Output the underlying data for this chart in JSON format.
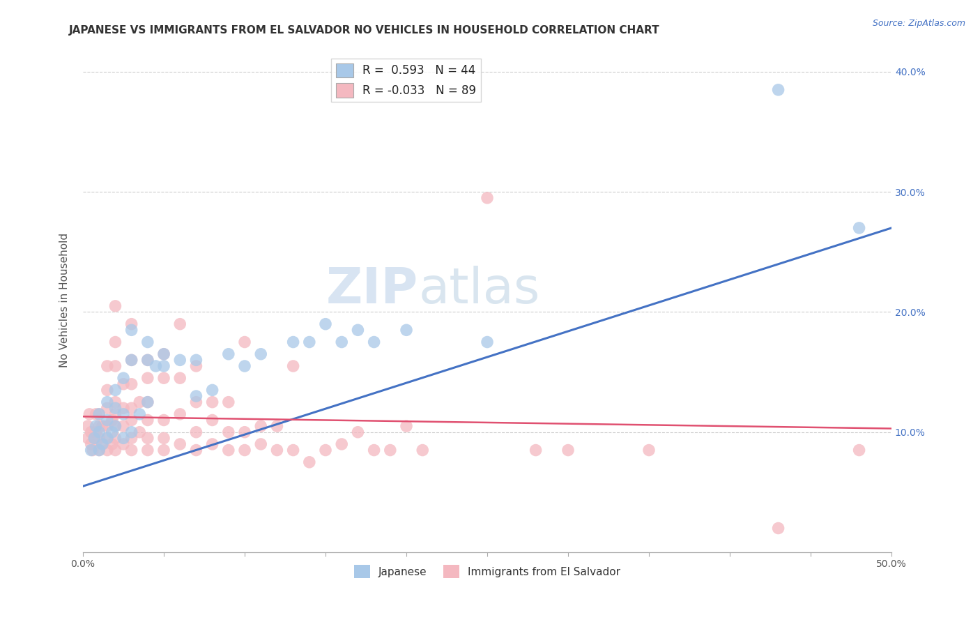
{
  "title": "JAPANESE VS IMMIGRANTS FROM EL SALVADOR NO VEHICLES IN HOUSEHOLD CORRELATION CHART",
  "source": "Source: ZipAtlas.com",
  "ylabel": "No Vehicles in Household",
  "xlabel": "",
  "xlim": [
    0.0,
    0.5
  ],
  "ylim": [
    -0.02,
    0.44
  ],
  "plot_ylim": [
    0.0,
    0.42
  ],
  "xticks": [
    0.0,
    0.05,
    0.1,
    0.15,
    0.2,
    0.25,
    0.3,
    0.35,
    0.4,
    0.45,
    0.5
  ],
  "ytick_positions": [
    0.1,
    0.2,
    0.3,
    0.4
  ],
  "ytick_labels": [
    "10.0%",
    "20.0%",
    "30.0%",
    "40.0%"
  ],
  "xtick_labels": [
    "0.0%",
    "",
    "",
    "",
    "",
    "",
    "",
    "",
    "",
    "",
    "50.0%"
  ],
  "watermark_zip": "ZIP",
  "watermark_atlas": "atlas",
  "blue_color": "#a8c8e8",
  "pink_color": "#f4b8c0",
  "blue_line_color": "#4472c4",
  "pink_line_color": "#e05070",
  "blue_line_x0": 0.0,
  "blue_line_y0": 0.055,
  "blue_line_x1": 0.5,
  "blue_line_y1": 0.27,
  "pink_line_x0": 0.0,
  "pink_line_y0": 0.113,
  "pink_line_x1": 0.5,
  "pink_line_y1": 0.103,
  "blue_scatter": [
    [
      0.005,
      0.085
    ],
    [
      0.007,
      0.095
    ],
    [
      0.008,
      0.105
    ],
    [
      0.01,
      0.085
    ],
    [
      0.01,
      0.1
    ],
    [
      0.01,
      0.115
    ],
    [
      0.012,
      0.09
    ],
    [
      0.015,
      0.095
    ],
    [
      0.015,
      0.11
    ],
    [
      0.015,
      0.125
    ],
    [
      0.018,
      0.1
    ],
    [
      0.02,
      0.105
    ],
    [
      0.02,
      0.12
    ],
    [
      0.02,
      0.135
    ],
    [
      0.025,
      0.095
    ],
    [
      0.025,
      0.115
    ],
    [
      0.025,
      0.145
    ],
    [
      0.03,
      0.1
    ],
    [
      0.03,
      0.16
    ],
    [
      0.03,
      0.185
    ],
    [
      0.035,
      0.115
    ],
    [
      0.04,
      0.125
    ],
    [
      0.04,
      0.16
    ],
    [
      0.04,
      0.175
    ],
    [
      0.045,
      0.155
    ],
    [
      0.05,
      0.155
    ],
    [
      0.05,
      0.165
    ],
    [
      0.06,
      0.16
    ],
    [
      0.07,
      0.13
    ],
    [
      0.07,
      0.16
    ],
    [
      0.08,
      0.135
    ],
    [
      0.09,
      0.165
    ],
    [
      0.1,
      0.155
    ],
    [
      0.11,
      0.165
    ],
    [
      0.13,
      0.175
    ],
    [
      0.14,
      0.175
    ],
    [
      0.15,
      0.19
    ],
    [
      0.16,
      0.175
    ],
    [
      0.17,
      0.185
    ],
    [
      0.18,
      0.175
    ],
    [
      0.2,
      0.185
    ],
    [
      0.25,
      0.175
    ],
    [
      0.43,
      0.385
    ],
    [
      0.48,
      0.27
    ]
  ],
  "pink_scatter": [
    [
      0.003,
      0.105
    ],
    [
      0.003,
      0.095
    ],
    [
      0.004,
      0.115
    ],
    [
      0.005,
      0.09
    ],
    [
      0.005,
      0.1
    ],
    [
      0.006,
      0.085
    ],
    [
      0.007,
      0.095
    ],
    [
      0.008,
      0.1
    ],
    [
      0.008,
      0.115
    ],
    [
      0.01,
      0.085
    ],
    [
      0.01,
      0.095
    ],
    [
      0.01,
      0.105
    ],
    [
      0.01,
      0.115
    ],
    [
      0.012,
      0.09
    ],
    [
      0.012,
      0.105
    ],
    [
      0.015,
      0.085
    ],
    [
      0.015,
      0.095
    ],
    [
      0.015,
      0.105
    ],
    [
      0.015,
      0.12
    ],
    [
      0.015,
      0.135
    ],
    [
      0.015,
      0.155
    ],
    [
      0.018,
      0.09
    ],
    [
      0.018,
      0.11
    ],
    [
      0.02,
      0.085
    ],
    [
      0.02,
      0.095
    ],
    [
      0.02,
      0.105
    ],
    [
      0.02,
      0.115
    ],
    [
      0.02,
      0.125
    ],
    [
      0.02,
      0.155
    ],
    [
      0.02,
      0.175
    ],
    [
      0.02,
      0.205
    ],
    [
      0.025,
      0.09
    ],
    [
      0.025,
      0.105
    ],
    [
      0.025,
      0.12
    ],
    [
      0.025,
      0.14
    ],
    [
      0.03,
      0.085
    ],
    [
      0.03,
      0.095
    ],
    [
      0.03,
      0.11
    ],
    [
      0.03,
      0.12
    ],
    [
      0.03,
      0.14
    ],
    [
      0.03,
      0.16
    ],
    [
      0.03,
      0.19
    ],
    [
      0.035,
      0.1
    ],
    [
      0.035,
      0.125
    ],
    [
      0.04,
      0.085
    ],
    [
      0.04,
      0.095
    ],
    [
      0.04,
      0.11
    ],
    [
      0.04,
      0.125
    ],
    [
      0.04,
      0.145
    ],
    [
      0.04,
      0.16
    ],
    [
      0.05,
      0.085
    ],
    [
      0.05,
      0.095
    ],
    [
      0.05,
      0.11
    ],
    [
      0.05,
      0.145
    ],
    [
      0.05,
      0.165
    ],
    [
      0.06,
      0.09
    ],
    [
      0.06,
      0.115
    ],
    [
      0.06,
      0.145
    ],
    [
      0.06,
      0.19
    ],
    [
      0.07,
      0.085
    ],
    [
      0.07,
      0.1
    ],
    [
      0.07,
      0.125
    ],
    [
      0.07,
      0.155
    ],
    [
      0.08,
      0.09
    ],
    [
      0.08,
      0.11
    ],
    [
      0.08,
      0.125
    ],
    [
      0.09,
      0.085
    ],
    [
      0.09,
      0.1
    ],
    [
      0.09,
      0.125
    ],
    [
      0.1,
      0.085
    ],
    [
      0.1,
      0.1
    ],
    [
      0.1,
      0.175
    ],
    [
      0.11,
      0.09
    ],
    [
      0.11,
      0.105
    ],
    [
      0.12,
      0.085
    ],
    [
      0.12,
      0.105
    ],
    [
      0.13,
      0.085
    ],
    [
      0.13,
      0.155
    ],
    [
      0.14,
      0.075
    ],
    [
      0.15,
      0.085
    ],
    [
      0.16,
      0.09
    ],
    [
      0.17,
      0.1
    ],
    [
      0.18,
      0.085
    ],
    [
      0.19,
      0.085
    ],
    [
      0.2,
      0.105
    ],
    [
      0.21,
      0.085
    ],
    [
      0.25,
      0.295
    ],
    [
      0.28,
      0.085
    ],
    [
      0.3,
      0.085
    ],
    [
      0.35,
      0.085
    ],
    [
      0.43,
      0.02
    ],
    [
      0.48,
      0.085
    ]
  ],
  "title_fontsize": 11,
  "axis_label_fontsize": 11,
  "tick_fontsize": 10,
  "legend_fontsize": 12,
  "background_color": "#ffffff",
  "grid_color": "#cccccc"
}
